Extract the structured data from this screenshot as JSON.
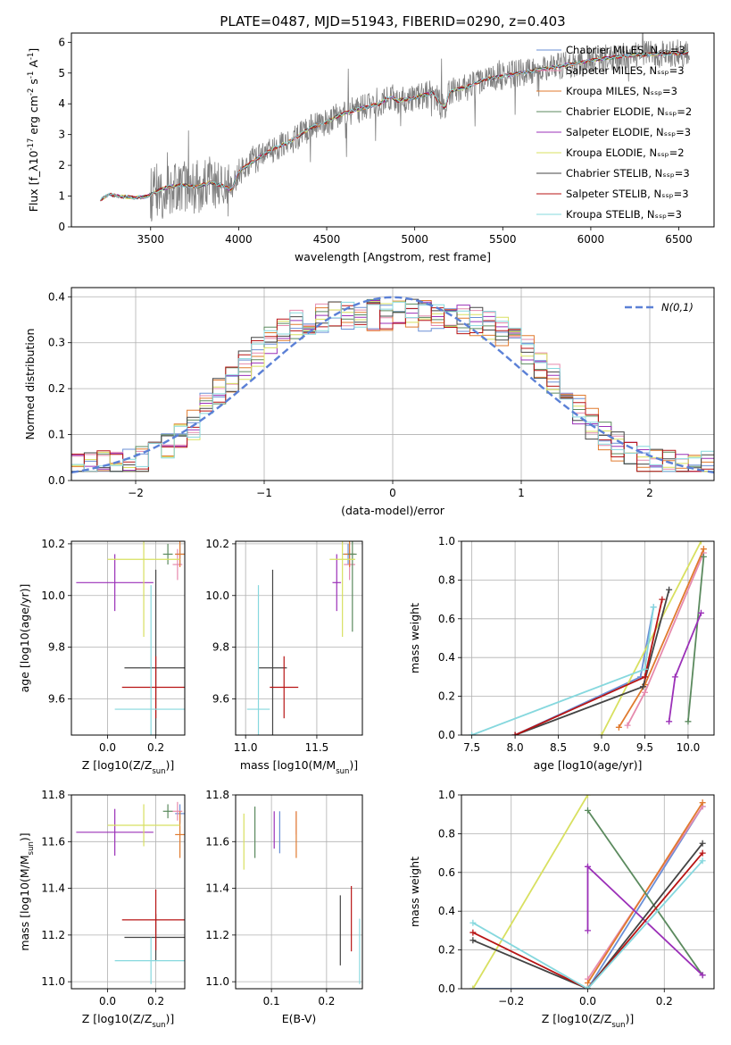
{
  "figure": {
    "title": "PLATE=0487, MJD=51943, FIBERID=0290, z=0.403"
  },
  "models": [
    {
      "name": "Chabrier MILES, N_SSP=3",
      "color": "#6a8fd6"
    },
    {
      "name": "Salpeter MILES, N_SSP=3",
      "color": "#e68aad"
    },
    {
      "name": "Kroupa MILES, N_SSP=3",
      "color": "#e07a2e"
    },
    {
      "name": "Chabrier ELODIE, N_SSP=2",
      "color": "#5b8a5e"
    },
    {
      "name": "Salpeter ELODIE, N_SSP=3",
      "color": "#9b30b8"
    },
    {
      "name": "Kroupa ELODIE, N_SSP=2",
      "color": "#d8e060"
    },
    {
      "name": "Chabrier STELIB, N_SSP=3",
      "color": "#444444"
    },
    {
      "name": "Salpeter STELIB, N_SSP=3",
      "color": "#b81414"
    },
    {
      "name": "Kroupa STELIB, N_SSP=3",
      "color": "#86d8de"
    }
  ],
  "chart_data": [
    {
      "id": "spectrum",
      "type": "line",
      "title": "PLATE=0487, MJD=51943, FIBERID=0290, z=0.403",
      "xlabel": "wavelength [Angstrom, rest frame]",
      "ylabel": "Flux [f_λ10^-17 erg cm^-2 s^-1 A^-1]",
      "xlim": [
        3050,
        6700
      ],
      "ylim": [
        0,
        6.3
      ],
      "xticks": [
        3500,
        4000,
        4500,
        5000,
        5500,
        6000,
        6500
      ],
      "yticks": [
        0,
        1,
        2,
        3,
        4,
        5,
        6
      ],
      "legend": "upper right",
      "data_color": "#808080",
      "x": [
        3210,
        3260,
        3320,
        3400,
        3480,
        3530,
        3600,
        3680,
        3760,
        3840,
        3900,
        3960,
        4000,
        4100,
        4200,
        4300,
        4400,
        4500,
        4600,
        4700,
        4800,
        4860,
        4900,
        5000,
        5100,
        5170,
        5200,
        5300,
        5400,
        5500,
        5600,
        5700,
        5800,
        5900,
        6000,
        6100,
        6200,
        6300,
        6400,
        6500,
        6550
      ],
      "y": [
        0.85,
        1.05,
        1.0,
        0.95,
        0.98,
        1.15,
        1.3,
        1.35,
        1.3,
        1.45,
        1.35,
        1.2,
        1.8,
        2.2,
        2.55,
        2.8,
        3.2,
        3.4,
        3.7,
        3.85,
        4.0,
        4.25,
        4.1,
        4.2,
        4.35,
        3.85,
        4.4,
        4.55,
        4.8,
        4.9,
        5.0,
        5.1,
        5.2,
        5.3,
        5.4,
        5.5,
        5.55,
        5.6,
        5.62,
        5.65,
        5.65
      ]
    },
    {
      "id": "residuals",
      "type": "bar",
      "xlabel": "(data-model)/error",
      "ylabel": "Normed distribution",
      "xlim": [
        -2.5,
        2.5
      ],
      "ylim": [
        0,
        0.42
      ],
      "xticks": [
        -2,
        -1,
        0,
        1,
        2
      ],
      "yticks": [
        0.0,
        0.1,
        0.2,
        0.3,
        0.4
      ],
      "legend": "upper right",
      "reference_label": "N(0,1)",
      "reference_color": "#5b80d6",
      "bins": [
        -2.5,
        2.5,
        50
      ]
    },
    {
      "id": "age-vs-Z",
      "type": "scatter",
      "xlabel": "Z [log10(Z/Z_sun)]",
      "ylabel": "age  [log10(age/yr)]",
      "xlim": [
        -0.15,
        0.32
      ],
      "ylim": [
        9.46,
        10.21
      ],
      "xticks": [
        0.0,
        0.2
      ],
      "yticks": [
        9.6,
        9.8,
        10.0,
        10.2
      ],
      "points": [
        {
          "model": 0,
          "x": 0.3,
          "y": 10.16,
          "xerr": 0.02,
          "yerr": 0.04
        },
        {
          "model": 1,
          "x": 0.29,
          "y": 10.12,
          "xerr": 0.02,
          "yerr": 0.06
        },
        {
          "model": 2,
          "x": 0.3,
          "y": 10.16,
          "xerr": 0.02,
          "yerr": 0.05
        },
        {
          "model": 3,
          "x": 0.25,
          "y": 10.16,
          "xerr": 0.02,
          "yerr": 0.04
        },
        {
          "model": 4,
          "x": 0.03,
          "y": 10.05,
          "xerr": 0.16,
          "yerr": 0.11
        },
        {
          "model": 5,
          "x": 0.15,
          "y": 10.14,
          "xerr": 0.15,
          "yerr": 0.3
        },
        {
          "model": 6,
          "x": 0.2,
          "y": 9.72,
          "xerr": 0.13,
          "yerr": 0.38
        },
        {
          "model": 7,
          "x": 0.2,
          "y": 9.645,
          "xerr": 0.14,
          "yerr": 0.12
        },
        {
          "model": 8,
          "x": 0.18,
          "y": 9.56,
          "xerr": 0.15,
          "yerr": 0.48
        }
      ]
    },
    {
      "id": "age-vs-mass",
      "type": "scatter",
      "xlabel": "mass [log10(M/M_sun)]",
      "ylabel": "",
      "xlim": [
        10.93,
        11.82
      ],
      "ylim": [
        9.46,
        10.21
      ],
      "xticks": [
        11.0,
        11.5
      ],
      "yticks": [
        9.6,
        9.8,
        10.0,
        10.2
      ],
      "points": [
        {
          "model": 0,
          "x": 11.72,
          "y": 10.16,
          "xerr": 0.04,
          "yerr": 0.04
        },
        {
          "model": 1,
          "x": 11.73,
          "y": 10.12,
          "xerr": 0.04,
          "yerr": 0.06
        },
        {
          "model": 2,
          "x": 11.73,
          "y": 10.16,
          "xerr": 0.04,
          "yerr": 0.05
        },
        {
          "model": 3,
          "x": 11.75,
          "y": 10.16,
          "xerr": 0.03,
          "yerr": 0.3
        },
        {
          "model": 4,
          "x": 11.64,
          "y": 10.05,
          "xerr": 0.03,
          "yerr": 0.11
        },
        {
          "model": 5,
          "x": 11.68,
          "y": 10.14,
          "xerr": 0.09,
          "yerr": 0.3
        },
        {
          "model": 6,
          "x": 11.19,
          "y": 9.72,
          "xerr": 0.1,
          "yerr": 0.38
        },
        {
          "model": 7,
          "x": 11.27,
          "y": 9.645,
          "xerr": 0.1,
          "yerr": 0.12
        },
        {
          "model": 8,
          "x": 11.09,
          "y": 9.56,
          "xerr": 0.08,
          "yerr": 0.48
        }
      ]
    },
    {
      "id": "mass-weight-vs-age",
      "type": "line",
      "xlabel": "age  [log10(age/yr)]",
      "ylabel": "mass weight",
      "xlim": [
        7.38,
        10.3
      ],
      "ylim": [
        0,
        1
      ],
      "xticks": [
        7.5,
        8.0,
        8.5,
        9.0,
        9.5,
        10.0
      ],
      "yticks": [
        0.0,
        0.2,
        0.4,
        0.6,
        0.8,
        1.0
      ],
      "series": [
        {
          "model": 0,
          "x": [
            8.0,
            9.45,
            9.6
          ],
          "y": [
            0.0,
            0.3,
            0.66
          ]
        },
        {
          "model": 1,
          "x": [
            9.3,
            9.5,
            10.18
          ],
          "y": [
            0.05,
            0.22,
            0.94
          ]
        },
        {
          "model": 2,
          "x": [
            9.2,
            9.5,
            10.18
          ],
          "y": [
            0.04,
            0.26,
            0.96
          ]
        },
        {
          "model": 3,
          "x": [
            10.0,
            10.18
          ],
          "y": [
            0.07,
            0.92
          ]
        },
        {
          "model": 4,
          "x": [
            9.78,
            9.85,
            10.15
          ],
          "y": [
            0.07,
            0.3,
            0.63
          ]
        },
        {
          "model": 5,
          "x": [
            9.0,
            10.15
          ],
          "y": [
            0.0,
            1.0
          ]
        },
        {
          "model": 6,
          "x": [
            8.0,
            9.48,
            9.78
          ],
          "y": [
            0.0,
            0.25,
            0.75
          ]
        },
        {
          "model": 7,
          "x": [
            8.0,
            9.5,
            9.7
          ],
          "y": [
            0.0,
            0.3,
            0.7
          ]
        },
        {
          "model": 8,
          "x": [
            7.5,
            9.5,
            9.6
          ],
          "y": [
            0.0,
            0.34,
            0.66
          ]
        }
      ]
    },
    {
      "id": "mass-vs-Z",
      "type": "scatter",
      "xlabel": "Z [log10(Z/Z_sun)]",
      "ylabel": "mass [log10(M/M_sun)]",
      "xlim": [
        -0.15,
        0.32
      ],
      "ylim": [
        10.97,
        11.8
      ],
      "xticks": [
        0.0,
        0.2
      ],
      "yticks": [
        11.0,
        11.2,
        11.4,
        11.6,
        11.8
      ],
      "points": [
        {
          "model": 0,
          "x": 0.3,
          "y": 11.72,
          "xerr": 0.02,
          "yerr": 0.04
        },
        {
          "model": 1,
          "x": 0.29,
          "y": 11.73,
          "xerr": 0.02,
          "yerr": 0.04
        },
        {
          "model": 2,
          "x": 0.3,
          "y": 11.63,
          "xerr": 0.02,
          "yerr": 0.1
        },
        {
          "model": 3,
          "x": 0.25,
          "y": 11.73,
          "xerr": 0.02,
          "yerr": 0.03
        },
        {
          "model": 4,
          "x": 0.03,
          "y": 11.64,
          "xerr": 0.16,
          "yerr": 0.1
        },
        {
          "model": 5,
          "x": 0.15,
          "y": 11.67,
          "xerr": 0.15,
          "yerr": 0.09
        },
        {
          "model": 6,
          "x": 0.2,
          "y": 11.19,
          "xerr": 0.13,
          "yerr": 0.1
        },
        {
          "model": 7,
          "x": 0.2,
          "y": 11.265,
          "xerr": 0.14,
          "yerr": 0.13
        },
        {
          "model": 8,
          "x": 0.18,
          "y": 11.09,
          "xerr": 0.15,
          "yerr": 0.1
        }
      ]
    },
    {
      "id": "mass-vs-EBV",
      "type": "scatter",
      "xlabel": "E(B-V)",
      "ylabel": "",
      "xlim": [
        0.035,
        0.265
      ],
      "ylim": [
        10.97,
        11.8
      ],
      "xticks": [
        0.1,
        0.2
      ],
      "yticks": [
        11.0,
        11.2,
        11.4,
        11.6,
        11.8
      ],
      "points": [
        {
          "model": 0,
          "x": 0.115,
          "y": 11.64,
          "xerr": 0.0,
          "yerr": 0.09
        },
        {
          "model": 1,
          "x": 0.145,
          "y": 11.68,
          "xerr": 0.0,
          "yerr": 0.05
        },
        {
          "model": 2,
          "x": 0.145,
          "y": 11.63,
          "xerr": 0.0,
          "yerr": 0.1
        },
        {
          "model": 3,
          "x": 0.07,
          "y": 11.64,
          "xerr": 0.0,
          "yerr": 0.11
        },
        {
          "model": 4,
          "x": 0.105,
          "y": 11.65,
          "xerr": 0.0,
          "yerr": 0.08
        },
        {
          "model": 5,
          "x": 0.05,
          "y": 11.6,
          "xerr": 0.0,
          "yerr": 0.12
        },
        {
          "model": 6,
          "x": 0.225,
          "y": 11.22,
          "xerr": 0.0,
          "yerr": 0.15
        },
        {
          "model": 7,
          "x": 0.245,
          "y": 11.27,
          "xerr": 0.0,
          "yerr": 0.14
        },
        {
          "model": 8,
          "x": 0.26,
          "y": 11.13,
          "xerr": 0.0,
          "yerr": 0.14
        }
      ]
    },
    {
      "id": "mass-weight-vs-Z",
      "type": "line",
      "xlabel": "Z [log10(Z/Z_sun)]",
      "ylabel": "mass weight",
      "xlim": [
        -0.33,
        0.33
      ],
      "ylim": [
        0,
        1
      ],
      "xticks": [
        -0.2,
        0.0,
        0.2
      ],
      "yticks": [
        0.0,
        0.2,
        0.4,
        0.6,
        0.8,
        1.0
      ],
      "series": [
        {
          "model": 0,
          "x": [
            -0.3,
            0.0,
            0.3
          ],
          "y": [
            0.0,
            0.0,
            0.94
          ]
        },
        {
          "model": 1,
          "x": [
            0.0,
            0.3
          ],
          "y": [
            0.05,
            0.94
          ]
        },
        {
          "model": 2,
          "x": [
            0.0,
            0.3
          ],
          "y": [
            0.03,
            0.96
          ]
        },
        {
          "model": 3,
          "x": [
            0.0,
            0.3
          ],
          "y": [
            0.92,
            0.07
          ]
        },
        {
          "model": 4,
          "x": [
            0.0,
            0.0,
            0.3
          ],
          "y": [
            0.3,
            0.63,
            0.07
          ]
        },
        {
          "model": 5,
          "x": [
            -0.3,
            0.0
          ],
          "y": [
            0.0,
            1.0
          ]
        },
        {
          "model": 6,
          "x": [
            -0.3,
            0.0,
            0.3
          ],
          "y": [
            0.25,
            0.0,
            0.75
          ]
        },
        {
          "model": 7,
          "x": [
            -0.3,
            0.0,
            0.3
          ],
          "y": [
            0.29,
            0.0,
            0.7
          ]
        },
        {
          "model": 8,
          "x": [
            -0.3,
            0.0,
            0.3
          ],
          "y": [
            0.34,
            0.0,
            0.66
          ]
        }
      ]
    }
  ]
}
